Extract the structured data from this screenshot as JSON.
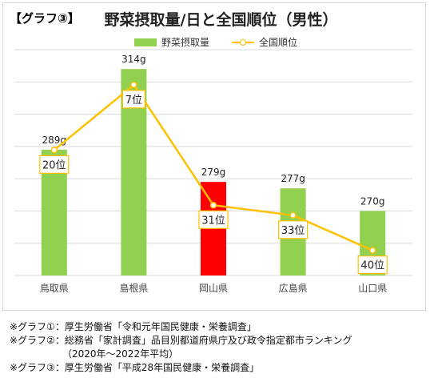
{
  "header": {
    "tag": "【グラフ③】",
    "title": "野菜摂取量/日と全国順位（男性）"
  },
  "legend": {
    "bar_label": "野菜摂取量",
    "line_label": "全国順位"
  },
  "colors": {
    "bar": "#92d050",
    "highlight_bar": "#ff0000",
    "line": "#ffc000",
    "grid": "#d9d9d9"
  },
  "chart_data": {
    "type": "bar",
    "categories": [
      "鳥取県",
      "島根県",
      "岡山県",
      "広島県",
      "山口県"
    ],
    "series": [
      {
        "name": "野菜摂取量",
        "type": "bar",
        "values": [
          289,
          314,
          279,
          277,
          270
        ],
        "labels": [
          "289g",
          "314g",
          "279g",
          "277g",
          "270g"
        ],
        "highlight_index": 2
      },
      {
        "name": "全国順位",
        "type": "line",
        "values": [
          20,
          7,
          31,
          33,
          40
        ],
        "labels": [
          "20位",
          "7位",
          "31位",
          "33位",
          "40位"
        ]
      }
    ],
    "title": "野菜摂取量/日と全国順位（男性）",
    "ylim": [
      250,
      320
    ],
    "rank_ylim": [
      45,
      0
    ],
    "grid": true,
    "legend": "top"
  },
  "notes": [
    "※グラフ①：厚生労働省「令和元年国民健康・栄養調査」",
    "※グラフ②：総務省「家計調査」品目別都道府県庁及び政令指定都市ランキング",
    "　　　　　　（2020年～2022年平均）",
    "※グラフ③：厚生労働省「平成28年国民健康・栄養調査」"
  ]
}
